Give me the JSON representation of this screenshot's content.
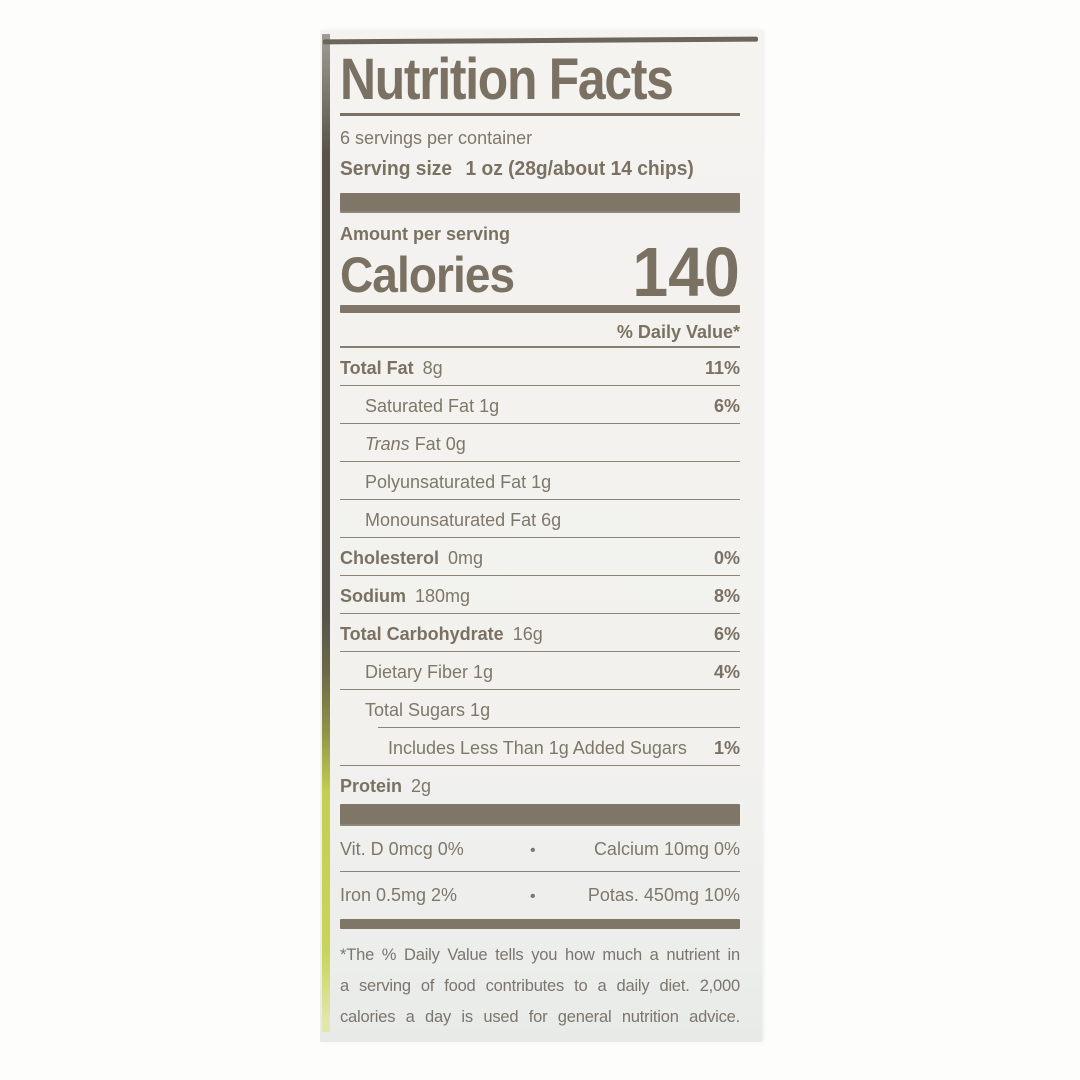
{
  "label": {
    "title": "Nutrition Facts",
    "servings_per_container": "6 servings per container",
    "serving_size_label": "Serving size",
    "serving_size_value": "1 oz (28g/about 14 chips)",
    "amount_per_serving": "Amount per serving",
    "calories_label": "Calories",
    "calories_value": "140",
    "daily_value_header": "% Daily Value*",
    "rows": [
      {
        "bold": "Total Fat",
        "amount": "8g",
        "dv": "11%"
      },
      {
        "text": "Saturated Fat 1g",
        "dv": "6%"
      },
      {
        "italic": "Trans",
        "text": " Fat 0g",
        "dv": ""
      },
      {
        "text": "Polyunsaturated Fat 1g",
        "dv": ""
      },
      {
        "text": "Monounsaturated Fat 6g",
        "dv": ""
      },
      {
        "bold": "Cholesterol",
        "amount": "0mg",
        "dv": "0%"
      },
      {
        "bold": "Sodium",
        "amount": "180mg",
        "dv": "8%"
      },
      {
        "bold": "Total Carbohydrate",
        "amount": "16g",
        "dv": "6%"
      },
      {
        "text": "Dietary Fiber 1g",
        "dv": "4%"
      },
      {
        "text": "Total Sugars 1g",
        "dv": ""
      },
      {
        "text": "Includes Less Than 1g Added Sugars",
        "dv": "1%"
      },
      {
        "bold": "Protein",
        "amount": "2g",
        "dv": ""
      }
    ],
    "micros": [
      {
        "left": "Vit. D 0mcg 0%",
        "bullet": "•",
        "right": "Calcium 10mg 0%"
      },
      {
        "left": "Iron 0.5mg 2%",
        "bullet": "•",
        "right": "Potas. 450mg 10%"
      }
    ],
    "footnote_lines": [
      "*The % Daily Value tells you how much a nutrient in",
      "a serving of food contributes to a daily diet. 2,000",
      "calories a day is used for general nutrition advice."
    ]
  },
  "colors": {
    "ink": "#7b7163",
    "ink_light": "#7f7769",
    "rule": "#8b8375",
    "bar": "#7f7668",
    "paper": "#f2f1ee",
    "paper_bottom": "#e8eae8",
    "package_edge_green": "#c9d45a",
    "package_edge_olive": "#6b6a49",
    "package_edge_dark": "#55534b"
  }
}
